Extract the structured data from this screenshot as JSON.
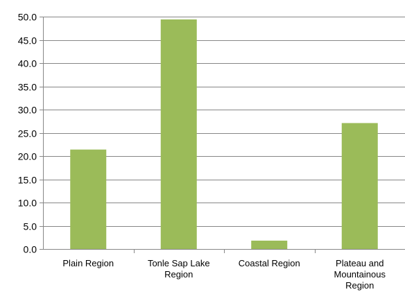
{
  "chart_data": {
    "type": "bar",
    "categories": [
      [
        "Plain Region"
      ],
      [
        "Tonle Sap Lake",
        "Region"
      ],
      [
        "Coastal Region"
      ],
      [
        "Plateau and",
        "Mountainous",
        "Region"
      ]
    ],
    "values": [
      21.4,
      49.4,
      1.8,
      27.1
    ],
    "ylim": [
      0,
      50
    ],
    "yticks": [
      "0.0",
      "5.0",
      "10.0",
      "15.0",
      "20.0",
      "25.0",
      "30.0",
      "35.0",
      "40.0",
      "45.0",
      "50.0"
    ],
    "grid": true,
    "bar_color": "#9bbb59",
    "grid_color": "#868686"
  }
}
